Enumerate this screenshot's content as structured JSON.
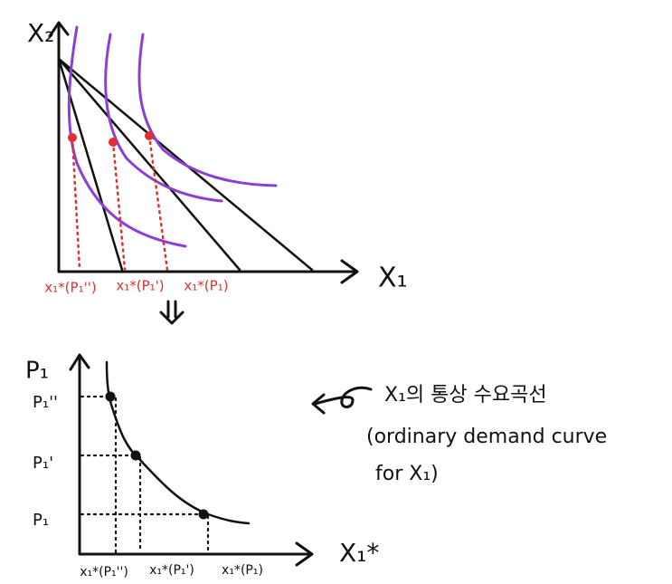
{
  "top_graph": {
    "y_axis": "X₂",
    "x_axis": "X₁",
    "x_labels": [
      "x₁*(P₁'')",
      "x₁*(P₁')",
      "x₁*(P₁)"
    ]
  },
  "bottom_graph": {
    "y_axis": "P₁",
    "x_axis": "X₁*",
    "y_labels": [
      "P₁''",
      "P₁'",
      "P₁"
    ],
    "x_labels": [
      "x₁*(P₁'')",
      "x₁*(P₁')",
      "x₁*(P₁)"
    ]
  },
  "annotation": {
    "lines": [
      "X₁의 통상 수요곡선",
      "(ordinary demand curve",
      "for X₁)"
    ]
  }
}
